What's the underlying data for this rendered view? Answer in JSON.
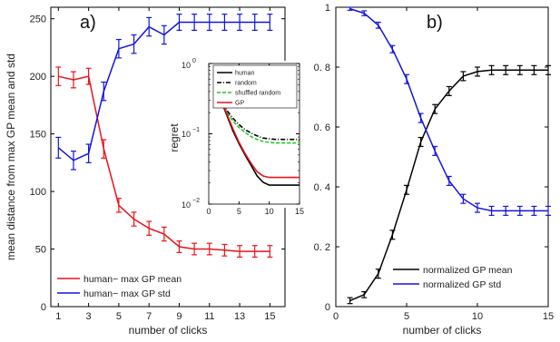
{
  "chart_data": [
    {
      "id": "a",
      "type": "line",
      "panel_label": "a)",
      "xlabel": "number of clicks",
      "ylabel": "mean distance from max GP mean and std",
      "xlim": [
        0.5,
        16
      ],
      "ylim": [
        0,
        260
      ],
      "xticks": [
        1,
        3,
        5,
        7,
        9,
        11,
        13,
        15
      ],
      "yticks": [
        0,
        50,
        100,
        150,
        200,
        250
      ],
      "legend_position": "bottom-left",
      "series": [
        {
          "name": "human− max GP mean",
          "color": "#e8141c",
          "x": [
            1,
            2,
            3,
            4,
            5,
            6,
            7,
            8,
            9,
            10,
            11,
            12,
            13,
            14,
            15
          ],
          "y": [
            200,
            197,
            200,
            137,
            88,
            76,
            68,
            63,
            52,
            50,
            50,
            49,
            48,
            48,
            48
          ],
          "err": [
            8,
            7,
            7,
            8,
            6,
            6,
            6,
            6,
            5,
            5,
            5,
            5,
            5,
            5,
            5
          ]
        },
        {
          "name": "human− max GP std",
          "color": "#1414e0",
          "x": [
            1,
            2,
            3,
            4,
            5,
            6,
            7,
            8,
            9,
            10,
            11,
            12,
            13,
            14,
            15
          ],
          "y": [
            138,
            127,
            133,
            187,
            224,
            228,
            243,
            236,
            247,
            247,
            247,
            247,
            247,
            247,
            247
          ],
          "err": [
            9,
            8,
            8,
            8,
            8,
            8,
            8,
            8,
            7,
            7,
            7,
            7,
            7,
            7,
            7
          ]
        }
      ]
    },
    {
      "id": "a-inset",
      "type": "line",
      "ylabel": "regret",
      "yscale": "log",
      "xlim": [
        0,
        15
      ],
      "ylim_log10": [
        -2,
        0
      ],
      "xticks": [
        0,
        5,
        10,
        15
      ],
      "ytick_labels": [
        {
          "base": "10",
          "exp": "0",
          "pos": 0
        },
        {
          "base": "10",
          "exp": "−1",
          "pos": -1
        },
        {
          "base": "10",
          "exp": "−2",
          "pos": -2
        }
      ],
      "legend_position": "top-right",
      "series": [
        {
          "name": "human",
          "color": "#000000",
          "dash": "none",
          "x": [
            1,
            2,
            3,
            4,
            5,
            6,
            7,
            8,
            9,
            10,
            11,
            12,
            13,
            14,
            15
          ],
          "y_log10": [
            -0.28,
            -0.52,
            -0.74,
            -0.96,
            -1.14,
            -1.3,
            -1.45,
            -1.6,
            -1.69,
            -1.73,
            -1.73,
            -1.73,
            -1.73,
            -1.73,
            -1.73
          ]
        },
        {
          "name": "random",
          "color": "#000000",
          "dash": "5,2,1,2",
          "x": [
            1,
            2,
            3,
            4,
            5,
            6,
            7,
            8,
            9,
            10,
            11,
            12,
            13,
            14,
            15
          ],
          "y_log10": [
            -0.33,
            -0.52,
            -0.67,
            -0.78,
            -0.87,
            -0.94,
            -0.99,
            -1.03,
            -1.06,
            -1.07,
            -1.08,
            -1.08,
            -1.08,
            -1.08,
            -1.08
          ]
        },
        {
          "name": "shuffled random",
          "color": "#1ecb1e",
          "dash": "4,2",
          "x": [
            1,
            2,
            3,
            4,
            5,
            6,
            7,
            8,
            9,
            10,
            11,
            12,
            13,
            14,
            15
          ],
          "y_log10": [
            -0.36,
            -0.55,
            -0.7,
            -0.82,
            -0.91,
            -0.98,
            -1.04,
            -1.08,
            -1.11,
            -1.12,
            -1.13,
            -1.13,
            -1.13,
            -1.13,
            -1.13
          ]
        },
        {
          "name": "GP",
          "color": "#e8141c",
          "dash": "none",
          "x": [
            1,
            2,
            3,
            4,
            5,
            6,
            7,
            8,
            9,
            10,
            11,
            12,
            13,
            14,
            15
          ],
          "y_log10": [
            -0.3,
            -0.5,
            -0.72,
            -0.93,
            -1.12,
            -1.28,
            -1.42,
            -1.54,
            -1.6,
            -1.62,
            -1.62,
            -1.62,
            -1.62,
            -1.62,
            -1.62
          ]
        }
      ]
    },
    {
      "id": "b",
      "type": "line",
      "panel_label": "b)",
      "xlabel": "number of clicks",
      "ylabel": "",
      "xlim": [
        0,
        15
      ],
      "ylim": [
        0,
        1
      ],
      "xticks": [
        0,
        5,
        10,
        15
      ],
      "yticks": [
        0,
        0.2,
        0.4,
        0.6,
        0.8,
        1
      ],
      "ytick_labels": [
        "0",
        "0. 2",
        "0. 4",
        "0. 6",
        "0. 8",
        "1"
      ],
      "legend_position": "bottom-right",
      "series": [
        {
          "name": "normalized GP mean",
          "color": "#000000",
          "x": [
            1,
            2,
            3,
            4,
            5,
            6,
            7,
            8,
            9,
            10,
            11,
            12,
            13,
            14,
            15
          ],
          "y": [
            0.02,
            0.04,
            0.11,
            0.24,
            0.39,
            0.55,
            0.66,
            0.72,
            0.77,
            0.785,
            0.79,
            0.79,
            0.79,
            0.79,
            0.79
          ],
          "err": [
            0.01,
            0.01,
            0.015,
            0.015,
            0.015,
            0.015,
            0.015,
            0.015,
            0.015,
            0.015,
            0.015,
            0.015,
            0.015,
            0.015,
            0.015
          ]
        },
        {
          "name": "normalized GP std",
          "color": "#1414e0",
          "x": [
            1,
            2,
            3,
            4,
            5,
            6,
            7,
            8,
            9,
            10,
            11,
            12,
            13,
            14,
            15
          ],
          "y": [
            0.995,
            0.98,
            0.94,
            0.86,
            0.76,
            0.63,
            0.52,
            0.42,
            0.36,
            0.33,
            0.32,
            0.32,
            0.32,
            0.32,
            0.32
          ],
          "err": [
            0.005,
            0.008,
            0.01,
            0.012,
            0.015,
            0.015,
            0.015,
            0.015,
            0.015,
            0.015,
            0.015,
            0.015,
            0.015,
            0.015,
            0.015
          ]
        }
      ]
    }
  ]
}
